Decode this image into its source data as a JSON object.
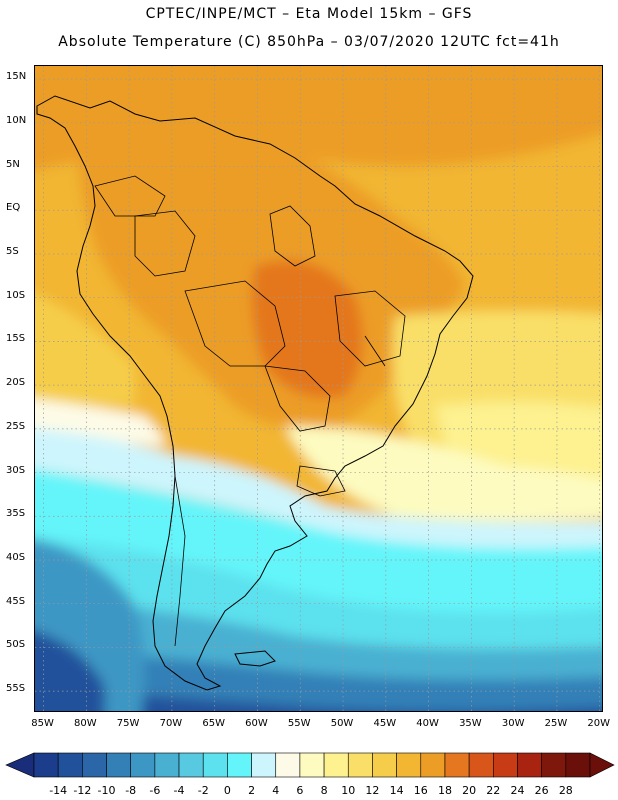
{
  "header": {
    "line1": "CPTEC/INPE/MCT –  Eta Model 15km – GFS",
    "line2": "Absolute Temperature (C) 850hPa – 03/07/2020 12UTC fct=41h"
  },
  "map": {
    "lat_labels": [
      "15N",
      "10N",
      "5N",
      "EQ",
      "5S",
      "10S",
      "15S",
      "20S",
      "25S",
      "30S",
      "35S",
      "40S",
      "45S",
      "50S",
      "55S"
    ],
    "lon_labels": [
      "85W",
      "80W",
      "75W",
      "70W",
      "65W",
      "60W",
      "55W",
      "50W",
      "45W",
      "40W",
      "35W",
      "30W",
      "25W",
      "20W"
    ],
    "lat_values": [
      15,
      10,
      5,
      0,
      -5,
      -10,
      -15,
      -20,
      -25,
      -30,
      -35,
      -40,
      -45,
      -50,
      -55
    ],
    "lon_values": [
      -85,
      -80,
      -75,
      -70,
      -65,
      -60,
      -55,
      -50,
      -45,
      -40,
      -35,
      -30,
      -25,
      -20
    ],
    "extent": {
      "lon_min": -86.0,
      "lon_max": -19.5,
      "lat_min": -57.5,
      "lat_max": 16.5
    },
    "grid": "dotted"
  },
  "colorbar": {
    "labels": [
      "-14",
      "-12",
      "-10",
      "-8",
      "-6",
      "-4",
      "-2",
      "0",
      "2",
      "4",
      "6",
      "8",
      "10",
      "12",
      "14",
      "16",
      "18",
      "20",
      "22",
      "24",
      "26",
      "28"
    ],
    "colors": [
      "#1c3c8c",
      "#22519b",
      "#2a66a8",
      "#3380b7",
      "#3d97c4",
      "#49b0d2",
      "#57c9e1",
      "#5ce1ee",
      "#63f5fa",
      "#cdf5fd",
      "#fdfbe7",
      "#fdfbc0",
      "#fdf190",
      "#f9df68",
      "#f5cd4a",
      "#f2b632",
      "#ec9d25",
      "#e4771f",
      "#d9561b",
      "#c73b15",
      "#a82411",
      "#7e180d",
      "#6a0f0a"
    ],
    "arrow_left_color": "#1a2d7a",
    "arrow_right_color": "#6a0f0a"
  }
}
